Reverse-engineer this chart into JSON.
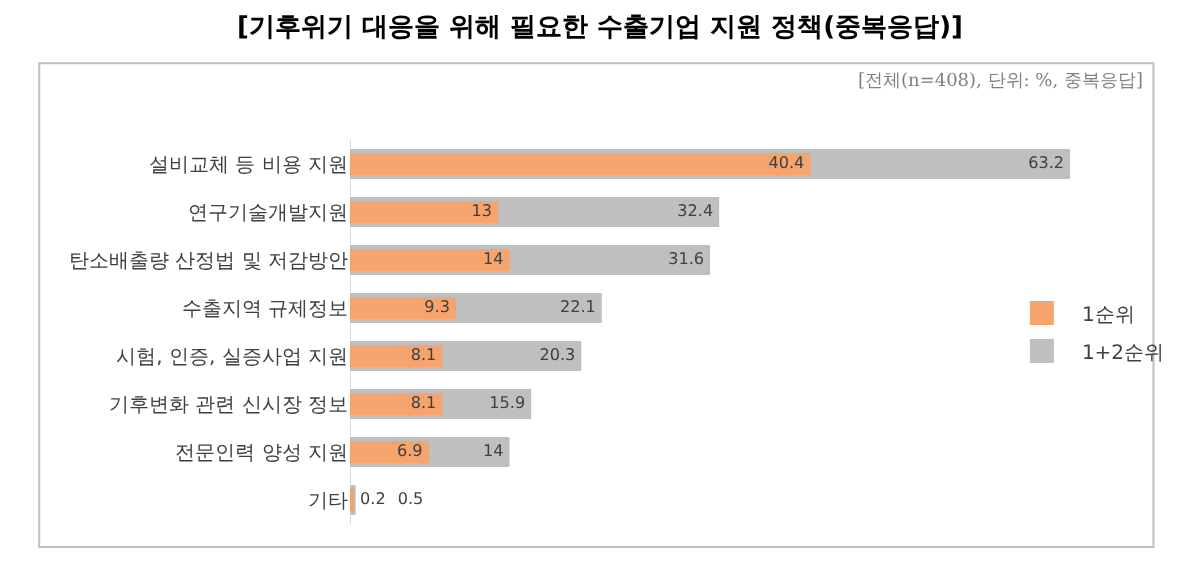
{
  "chart_data": {
    "type": "bar",
    "orientation": "horizontal",
    "title": "[기후위기 대응을 위해 필요한 수출기업 지원 정책(중복응답)]",
    "subtitle": "[전체(n=408), 단위: %, 중복응답]",
    "categories": [
      "설비교체 등 비용 지원",
      "연구기술개발지원",
      "탄소배출량 산정법 및 저감방안",
      "수출지역 규제정보",
      "시험, 인증, 실증사업 지원",
      "기후변화 관련 신시장 정보",
      "전문인력 양성 지원",
      "기타"
    ],
    "series": [
      {
        "name": "1+2순위",
        "color": "#bfbfbf",
        "values": [
          63.2,
          32.4,
          31.6,
          22.1,
          20.3,
          15.9,
          14,
          0.5
        ]
      },
      {
        "name": "1순위",
        "color": "#f4a46c",
        "values": [
          40.4,
          13,
          14,
          9.3,
          8.1,
          8.1,
          6.9,
          0.2
        ]
      }
    ],
    "data_labels": true,
    "legend": "right",
    "tick_labels": "y"
  }
}
